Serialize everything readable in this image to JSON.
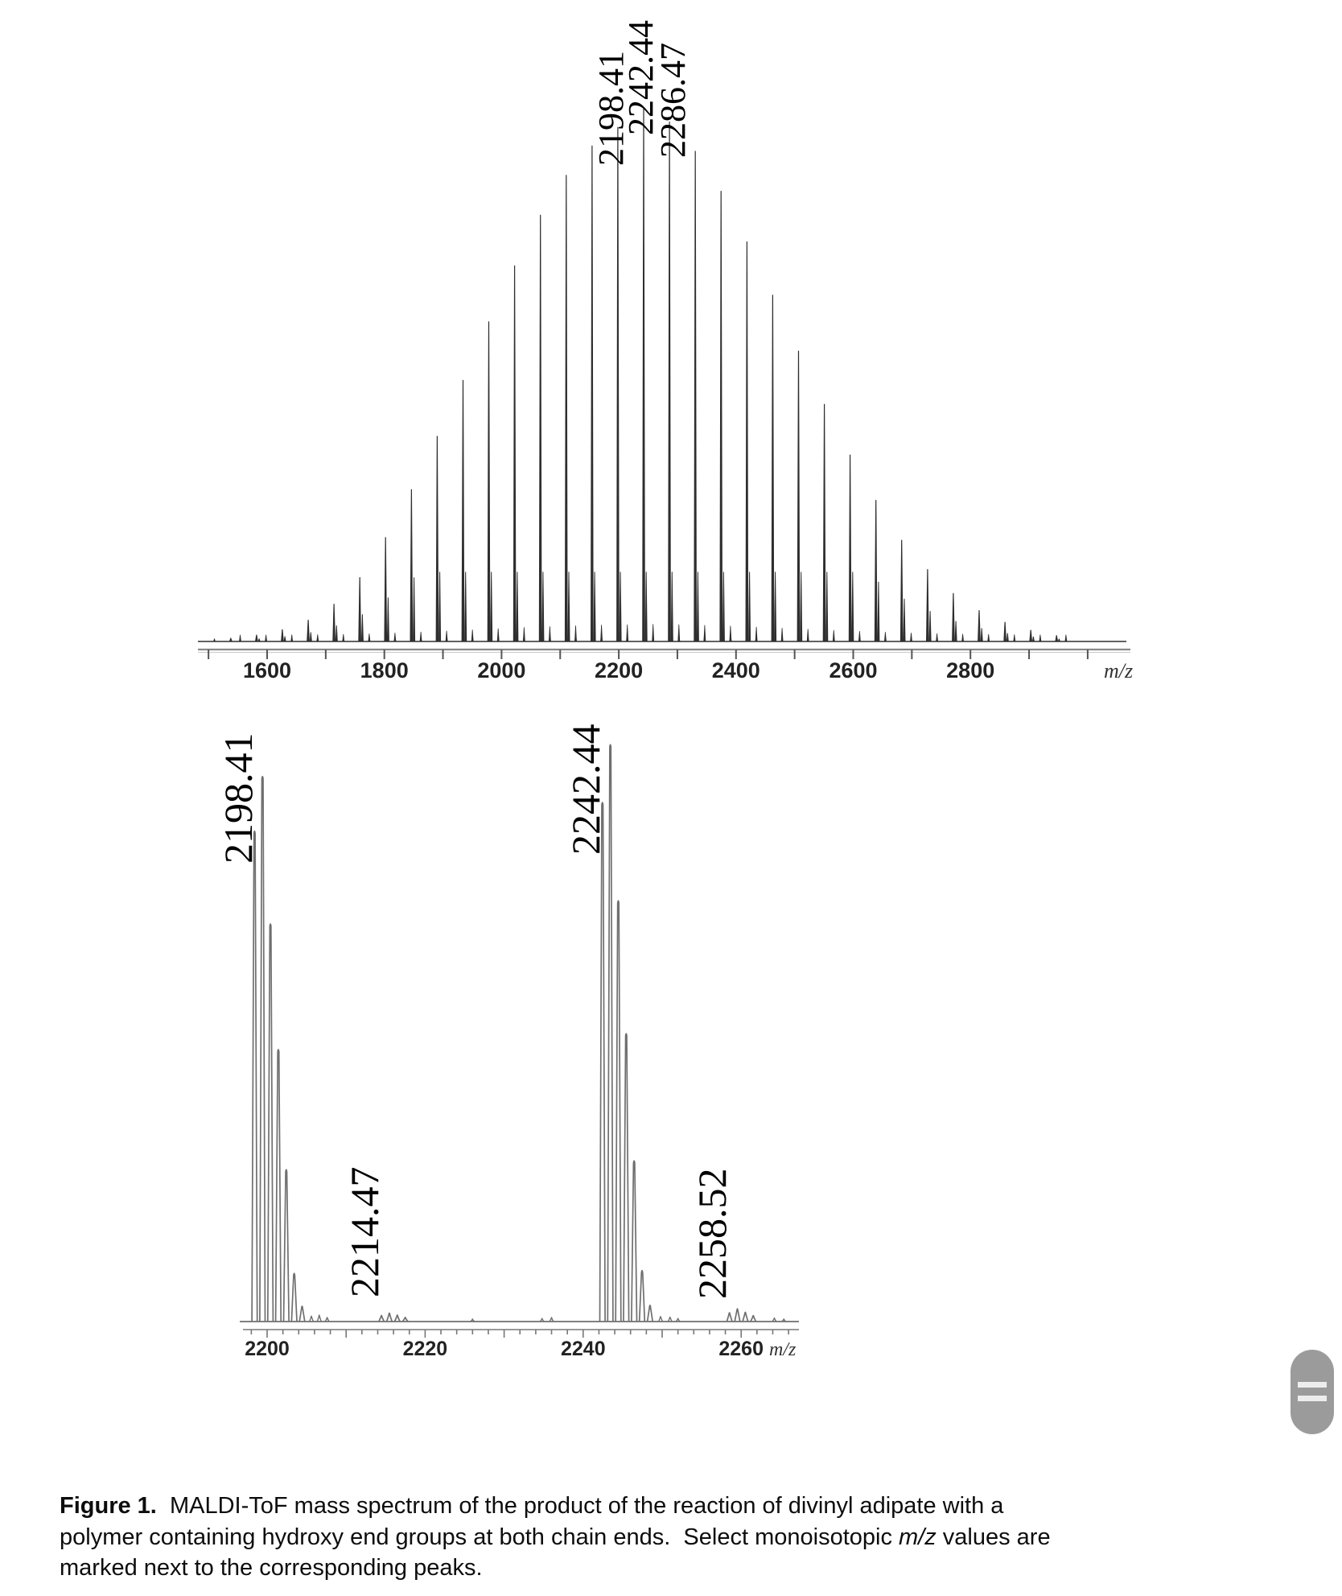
{
  "colors": {
    "background": "#ffffff",
    "trace_full": "#2e2e2e",
    "trace_zoom": "#6f6f6f",
    "axis_full": "#8a8a8a",
    "axis_zoom": "#9a9a9a",
    "tick_label": "#222222",
    "peak_label": "#000000",
    "handle_pill": "#9b9b9b",
    "handle_bar": "#ededed"
  },
  "chart_data": [
    {
      "type": "line",
      "id": "full_spectrum",
      "title": "",
      "xlabel": "m/z",
      "ylabel": "",
      "grid": false,
      "x_axis": {
        "labeled_ticks": [
          1600,
          1800,
          2000,
          2200,
          2400,
          2600,
          2800
        ],
        "minor_tick_step": 100,
        "minor_tick_range": [
          1500,
          3000
        ],
        "range": [
          1480,
          3060
        ],
        "unit_label": "m/z"
      },
      "repeat_unit_mz": 44.03,
      "peaks_main": [
        [
          1538.0,
          0.006
        ],
        [
          1582.0,
          0.012
        ],
        [
          1626.0,
          0.022
        ],
        [
          1670.1,
          0.04
        ],
        [
          1714.1,
          0.07
        ],
        [
          1758.1,
          0.12
        ],
        [
          1802.1,
          0.195
        ],
        [
          1846.2,
          0.285
        ],
        [
          1890.2,
          0.385
        ],
        [
          1934.2,
          0.49
        ],
        [
          1978.2,
          0.6
        ],
        [
          2022.3,
          0.705
        ],
        [
          2066.3,
          0.8
        ],
        [
          2110.3,
          0.875
        ],
        [
          2154.4,
          0.93
        ],
        [
          2198.41,
          0.965
        ],
        [
          2242.44,
          1.0
        ],
        [
          2286.47,
          0.975
        ],
        [
          2330.5,
          0.92
        ],
        [
          2374.5,
          0.845
        ],
        [
          2418.6,
          0.75
        ],
        [
          2462.6,
          0.65
        ],
        [
          2506.6,
          0.545
        ],
        [
          2550.7,
          0.445
        ],
        [
          2594.7,
          0.35
        ],
        [
          2638.7,
          0.265
        ],
        [
          2682.7,
          0.19
        ],
        [
          2726.8,
          0.135
        ],
        [
          2770.8,
          0.09
        ],
        [
          2814.8,
          0.058
        ],
        [
          2858.9,
          0.036
        ],
        [
          2902.9,
          0.021
        ],
        [
          2946.9,
          0.011
        ]
      ],
      "isotope_shoulder": {
        "offset_mz": 4.4,
        "ratio": 0.42,
        "cap": 0.13
      },
      "satellite_series": [
        {
          "offset_mz": 16.08,
          "base": 0.012,
          "slope": 0.02
        },
        {
          "offset_mz": -27.97,
          "base": 0.005,
          "slope": 0.012
        }
      ],
      "peak_labels": [
        {
          "text": "2198.41",
          "mz": 2198.41
        },
        {
          "text": "2242.44",
          "mz": 2242.44
        },
        {
          "text": "2286.47",
          "mz": 2286.47
        }
      ]
    },
    {
      "type": "line",
      "id": "zoom_spectrum",
      "title": "",
      "xlabel": "m/z",
      "ylabel": "",
      "grid": false,
      "x_axis": {
        "labeled_ticks": [
          2200,
          2220,
          2240,
          2260
        ],
        "medium_tick_step": 10,
        "minor_tick_step": 2,
        "minor_tick_range": [
          2198,
          2266
        ],
        "range": [
          2196,
          2267.5
        ],
        "unit_label": "m/z"
      },
      "isotope_spacing_mz": 1.0034,
      "clusters": [
        {
          "base_mz": 2198.41,
          "scale": 0.945,
          "isotope_rel": [
            0.9,
            1.0,
            0.73,
            0.5,
            0.28,
            0.09,
            0.03
          ]
        },
        {
          "base_mz": 2214.47,
          "scale": 0.016,
          "isotope_rel": [
            0.7,
            1.0,
            0.75,
            0.45
          ]
        },
        {
          "base_mz": 2242.44,
          "scale": 1.0,
          "isotope_rel": [
            0.9,
            1.0,
            0.73,
            0.5,
            0.28,
            0.09,
            0.03
          ]
        },
        {
          "base_mz": 2258.52,
          "scale": 0.024,
          "isotope_rel": [
            0.7,
            1.0,
            0.75,
            0.45
          ]
        }
      ],
      "noise_peaks": [
        [
          2205.6,
          0.01
        ],
        [
          2206.6,
          0.012
        ],
        [
          2207.6,
          0.007
        ],
        [
          2226.0,
          0.004
        ],
        [
          2234.8,
          0.005
        ],
        [
          2236.0,
          0.007
        ],
        [
          2249.8,
          0.009
        ],
        [
          2251.0,
          0.008
        ],
        [
          2252.0,
          0.005
        ],
        [
          2264.2,
          0.006
        ],
        [
          2265.4,
          0.004
        ]
      ],
      "peak_labels": [
        {
          "text": "2198.41",
          "mz": 2198.41
        },
        {
          "text": "2214.47",
          "mz": 2214.47
        },
        {
          "text": "2242.44",
          "mz": 2242.44
        },
        {
          "text": "2258.52",
          "mz": 2258.52
        }
      ]
    }
  ],
  "caption": {
    "lines": [
      {
        "segs": [
          {
            "t": "Figure 1.",
            "b": true
          },
          {
            "t": "  MALDI-ToF mass spectrum of the product of the reaction of divinyl adipate with a"
          }
        ]
      },
      {
        "segs": [
          {
            "t": "polymer containing hydroxy end groups at both chain ends.  Select monoisotopic "
          },
          {
            "t": "m/z",
            "i": true
          },
          {
            "t": " values are"
          }
        ]
      },
      {
        "segs": [
          {
            "t": "marked next to the corresponding peaks."
          }
        ]
      }
    ]
  },
  "ui": {
    "scroll_handle": {
      "bars": 2
    }
  }
}
